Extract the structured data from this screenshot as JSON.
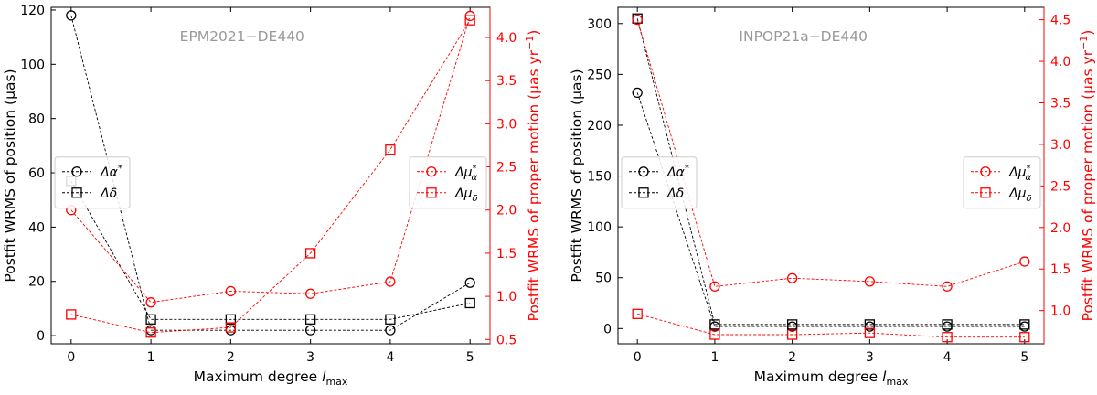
{
  "chart_data": [
    {
      "type": "line",
      "annotation": "EPM2021−DE440",
      "xlabel": "Maximum degree ",
      "xlabel_sym": "l",
      "xlabel_sub": "max",
      "ylabel_left": "Postfit WRMS of position (μas)",
      "ylabel_right": "Postfit WRMS of proper motion (μas yr",
      "ylabel_right_sup": "−1",
      "ylabel_right_close": ")",
      "x": [
        0,
        1,
        2,
        3,
        4,
        5
      ],
      "xlim": [
        -0.25,
        5.25
      ],
      "left_axis": {
        "ylim": [
          -3,
          121
        ],
        "ticks": [
          0,
          20,
          40,
          60,
          80,
          100,
          120
        ]
      },
      "right_axis": {
        "ylim": [
          0.45,
          4.35
        ],
        "ticks": [
          0.5,
          1.0,
          1.5,
          2.0,
          2.5,
          3.0,
          3.5,
          4.0
        ],
        "tick_labels": [
          "0.5",
          "1.0",
          "1.5",
          "2.0",
          "2.5",
          "3.0",
          "3.5",
          "4.0"
        ]
      },
      "grid": false,
      "series": [
        {
          "name": "Δα*",
          "axis": "left",
          "marker": "circle",
          "color": "#000000",
          "values": [
            118,
            2,
            2,
            2,
            2,
            19.5
          ]
        },
        {
          "name": "Δδ",
          "axis": "left",
          "marker": "square",
          "color": "#000000",
          "values": [
            57,
            6,
            6,
            6,
            6,
            12
          ]
        },
        {
          "name": "Δμα*",
          "axis": "right",
          "marker": "circle",
          "color": "#ff0000",
          "values": [
            2.0,
            0.93,
            1.06,
            1.03,
            1.17,
            4.25
          ]
        },
        {
          "name": "Δμδ",
          "axis": "right",
          "marker": "square",
          "color": "#ff0000",
          "values": [
            0.79,
            0.58,
            0.64,
            1.5,
            2.7,
            4.2
          ]
        }
      ],
      "legend_left": [
        {
          "text": "Δα",
          "sup": "*",
          "sub": "",
          "marker": "circle"
        },
        {
          "text": "Δδ",
          "sup": "",
          "sub": "",
          "marker": "square"
        }
      ],
      "legend_right": [
        {
          "text": "Δμ",
          "sup": "*",
          "sub": "α",
          "marker": "circle"
        },
        {
          "text": "Δμ",
          "sup": "",
          "sub": "δ",
          "marker": "square"
        }
      ],
      "legend_left_placement": "center-left",
      "legend_right_placement": "center-right"
    },
    {
      "type": "line",
      "annotation": "INPOP21a−DE440",
      "xlabel": "Maximum degree ",
      "xlabel_sym": "l",
      "xlabel_sub": "max",
      "ylabel_left": "Postfit WRMS of position (μas)",
      "ylabel_right": "Postfit WRMS of proper motion (μas yr",
      "ylabel_right_sup": "−1",
      "ylabel_right_close": ")",
      "x": [
        0,
        1,
        2,
        3,
        4,
        5
      ],
      "xlim": [
        -0.25,
        5.25
      ],
      "left_axis": {
        "ylim": [
          -15,
          316
        ],
        "ticks": [
          0,
          50,
          100,
          150,
          200,
          250,
          300
        ]
      },
      "right_axis": {
        "ylim": [
          0.6,
          4.65
        ],
        "ticks": [
          1.0,
          1.5,
          2.0,
          2.5,
          3.0,
          3.5,
          4.0,
          4.5
        ],
        "tick_labels": [
          "1.0",
          "1.5",
          "2.0",
          "2.5",
          "3.0",
          "3.5",
          "4.0",
          "4.5"
        ]
      },
      "grid": false,
      "series": [
        {
          "name": "Δα*",
          "axis": "left",
          "marker": "circle",
          "color": "#000000",
          "values": [
            232,
            2,
            2,
            2,
            2,
            2
          ]
        },
        {
          "name": "Δδ",
          "axis": "left",
          "marker": "square",
          "color": "#000000",
          "values": [
            305,
            4,
            4,
            4,
            4,
            4
          ]
        },
        {
          "name": "Δμα*",
          "axis": "right",
          "marker": "circle",
          "color": "#ff0000",
          "values": [
            4.5,
            1.29,
            1.39,
            1.35,
            1.29,
            1.59
          ]
        },
        {
          "name": "Δμδ",
          "axis": "right",
          "marker": "square",
          "color": "#ff0000",
          "values": [
            0.96,
            0.71,
            0.71,
            0.73,
            0.68,
            0.68
          ]
        }
      ],
      "legend_left": [
        {
          "text": "Δα",
          "sup": "*",
          "sub": "",
          "marker": "circle"
        },
        {
          "text": "Δδ",
          "sup": "",
          "sub": "",
          "marker": "square"
        }
      ],
      "legend_right": [
        {
          "text": "Δμ",
          "sup": "*",
          "sub": "α",
          "marker": "circle"
        },
        {
          "text": "Δμ",
          "sup": "",
          "sub": "δ",
          "marker": "square"
        }
      ],
      "legend_left_placement": "center-left",
      "legend_right_placement": "center-right"
    }
  ]
}
